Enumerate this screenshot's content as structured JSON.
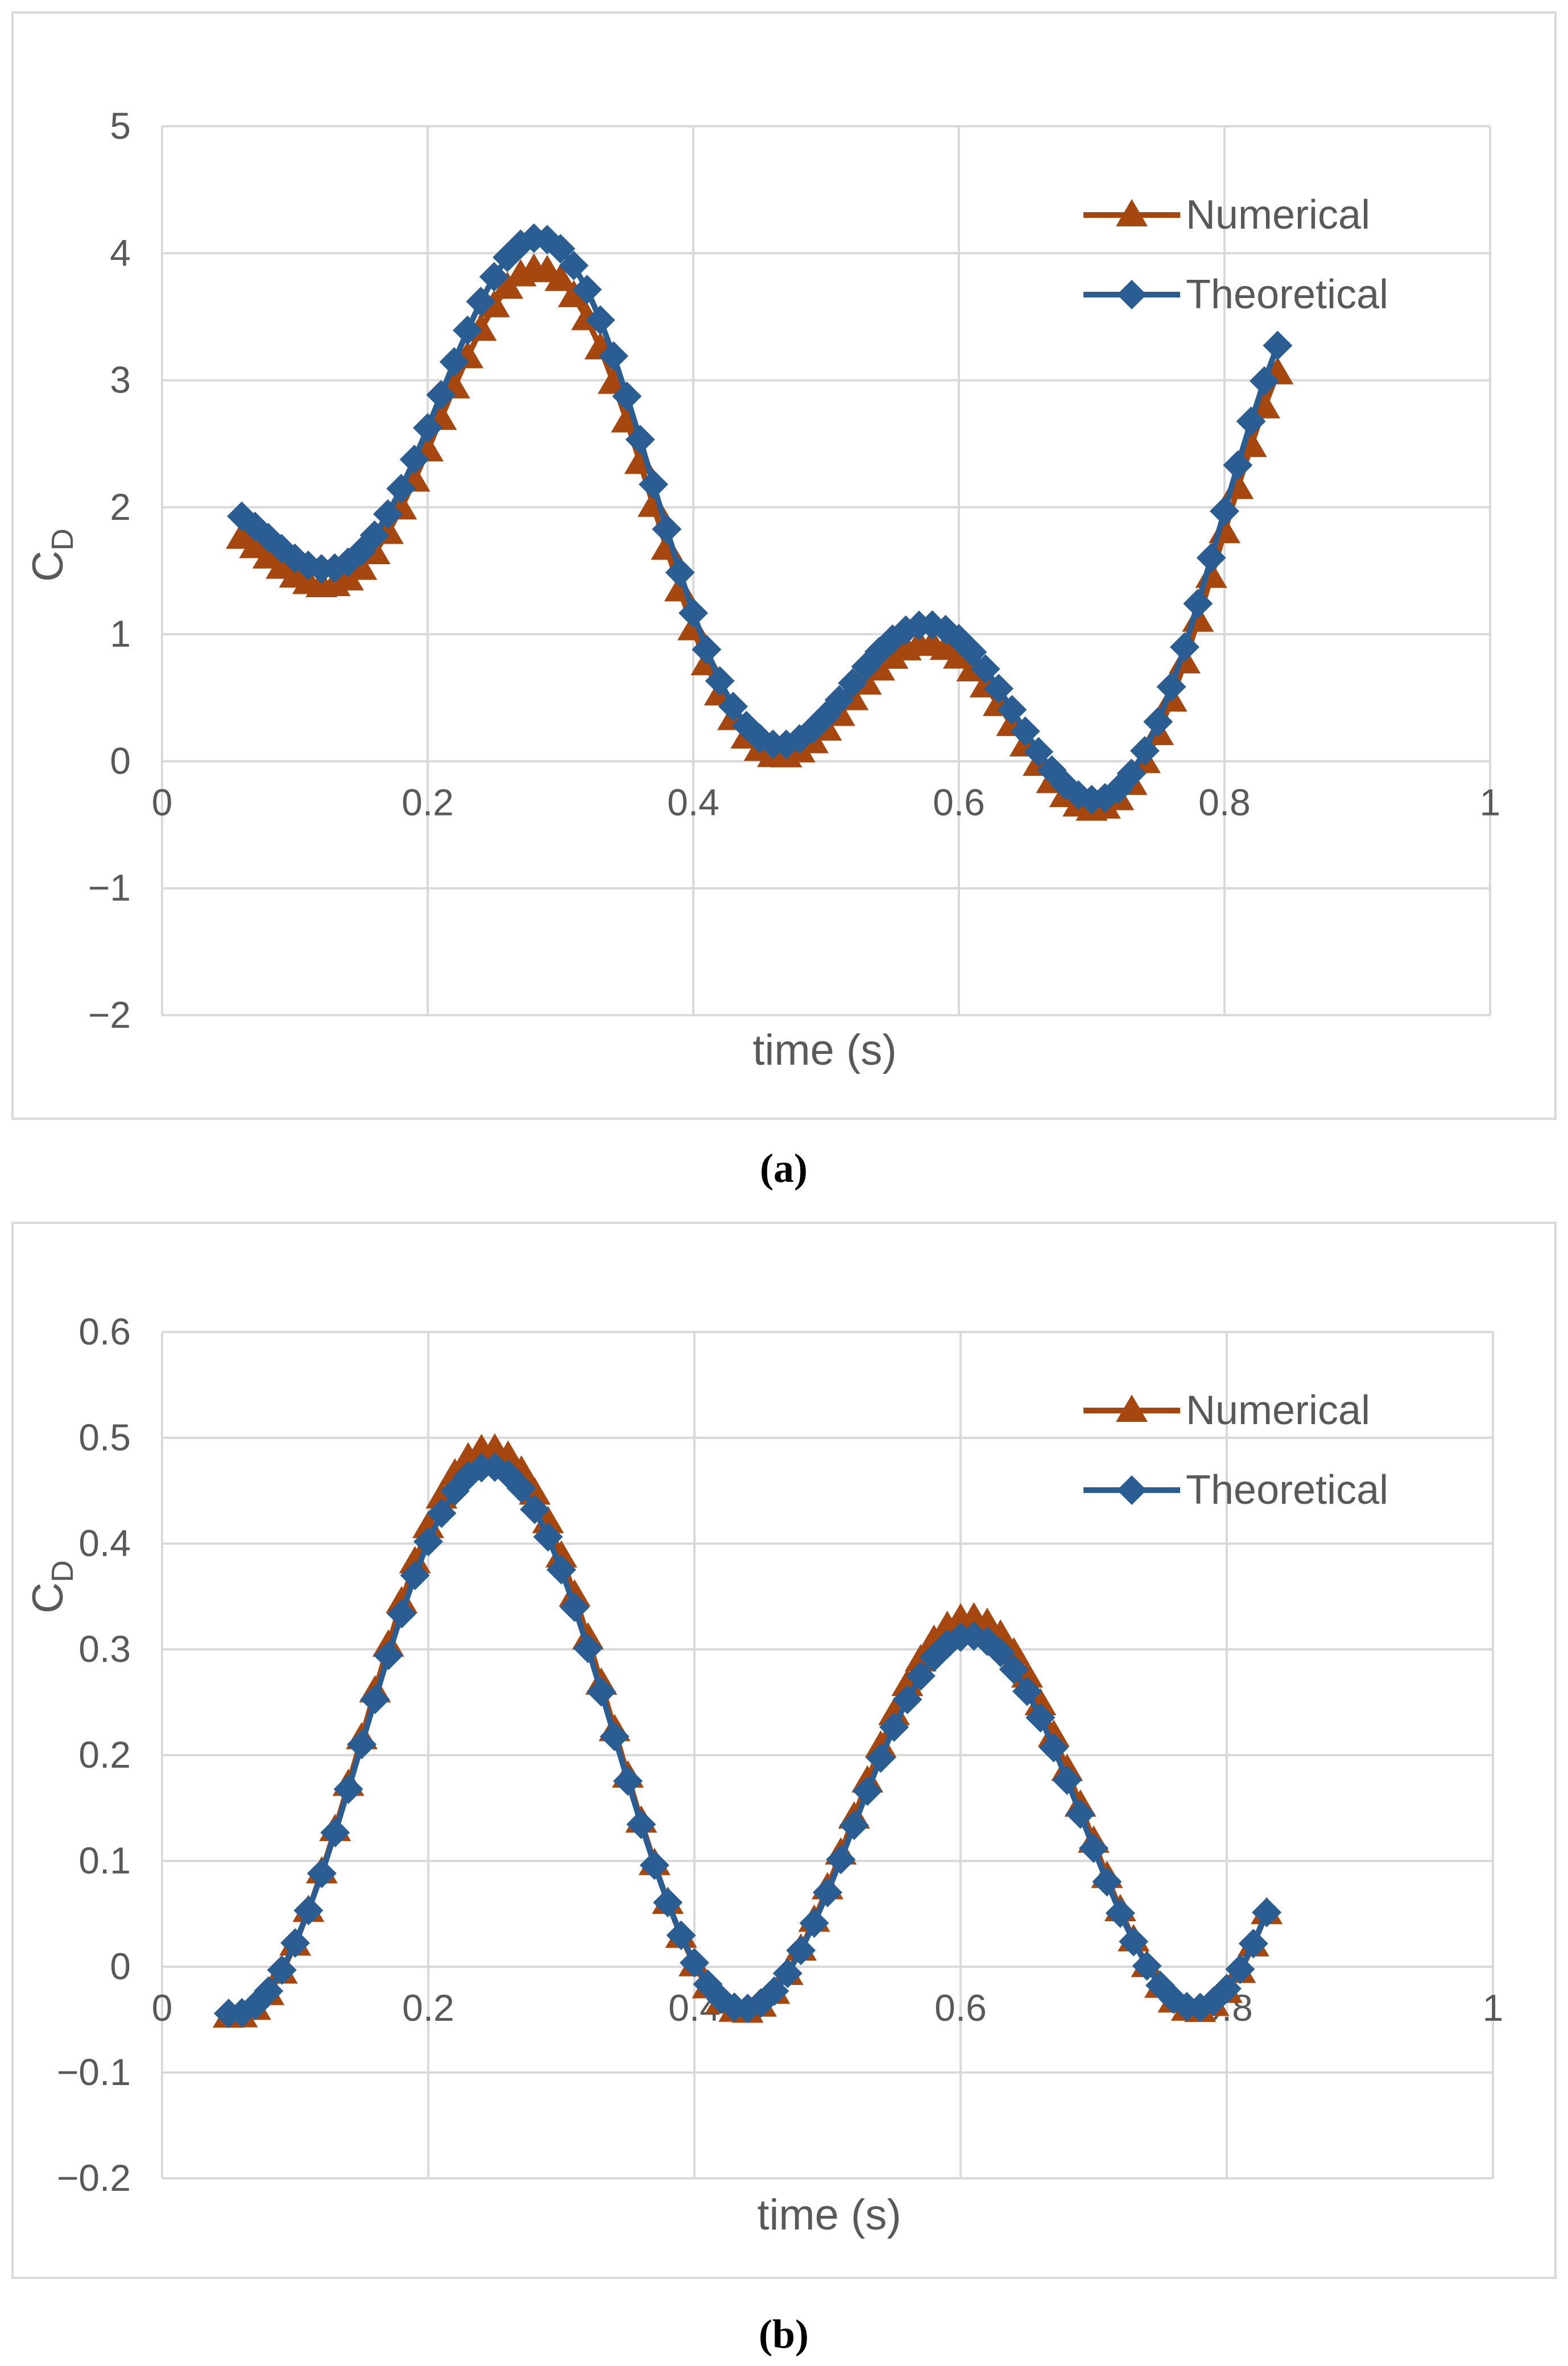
{
  "chart_data": [
    {
      "type": "line",
      "panel": "a",
      "caption": "(a)",
      "title": "",
      "xlabel": "time (s)",
      "ylabel": "C",
      "ylabel_sub": "D",
      "xlim": [
        0,
        1
      ],
      "ylim": [
        -2,
        5
      ],
      "xticks": [
        0,
        0.2,
        0.4,
        0.6,
        0.8,
        1
      ],
      "xtick_labels": [
        "0",
        "0.2",
        "0.4",
        "0.6",
        "0.8",
        "1"
      ],
      "yticks": [
        -2,
        -1,
        0,
        1,
        2,
        3,
        4,
        5
      ],
      "ytick_labels": [
        "−2",
        "−1",
        "0",
        "1",
        "2",
        "3",
        "4",
        "5"
      ],
      "grid": true,
      "legend_position": "top-right",
      "x_range": [
        0.06,
        0.84
      ],
      "x_step": 0.01,
      "series": [
        {
          "name": "Numerical",
          "color": "#a5470e",
          "marker": "triangle",
          "model": {
            "c": 1.45,
            "a1": 1.55,
            "w1": 8.8,
            "p1": -0.56,
            "a2": 1.0,
            "w2": 21.8,
            "p2": -4.82
          }
        },
        {
          "name": "Theoretical",
          "color": "#2a5d91",
          "marker": "diamond",
          "model": {
            "c": 1.6,
            "a1": 1.6,
            "w1": 8.8,
            "p1": -0.56,
            "a2": 1.05,
            "w2": 21.8,
            "p2": -4.82
          }
        }
      ]
    },
    {
      "type": "line",
      "panel": "b",
      "caption": "(b)",
      "title": "",
      "xlabel": "time (s)",
      "ylabel": "C",
      "ylabel_sub": "D",
      "xlim": [
        0,
        1
      ],
      "ylim": [
        -0.2,
        0.6
      ],
      "xticks": [
        0,
        0.2,
        0.4,
        0.6,
        0.8,
        1
      ],
      "xtick_labels": [
        "0",
        "0.2",
        "0.4",
        "0.6",
        "0.8",
        "1"
      ],
      "yticks": [
        -0.2,
        -0.1,
        0,
        0.1,
        0.2,
        0.3,
        0.4,
        0.5,
        0.6
      ],
      "ytick_labels": [
        "−0.2",
        "−0.1",
        "0",
        "0.1",
        "0.2",
        "0.3",
        "0.4",
        "0.5",
        "0.6"
      ],
      "grid": true,
      "legend_position": "top-right",
      "x_range": [
        0.05,
        0.83
      ],
      "x_step": 0.01,
      "series": [
        {
          "name": "Numerical",
          "color": "#a5470e",
          "marker": "triangle",
          "model": {
            "c": 0.185,
            "a1": 0.08,
            "w1": 8.8,
            "p1": -0.62,
            "a2": 0.225,
            "w2": 17.4,
            "p2": -2.7
          }
        },
        {
          "name": "Theoretical",
          "color": "#2a5d91",
          "marker": "diamond",
          "model": {
            "c": 0.178,
            "a1": 0.08,
            "w1": 8.8,
            "p1": -0.62,
            "a2": 0.215,
            "w2": 17.4,
            "p2": -2.7
          }
        }
      ]
    }
  ]
}
